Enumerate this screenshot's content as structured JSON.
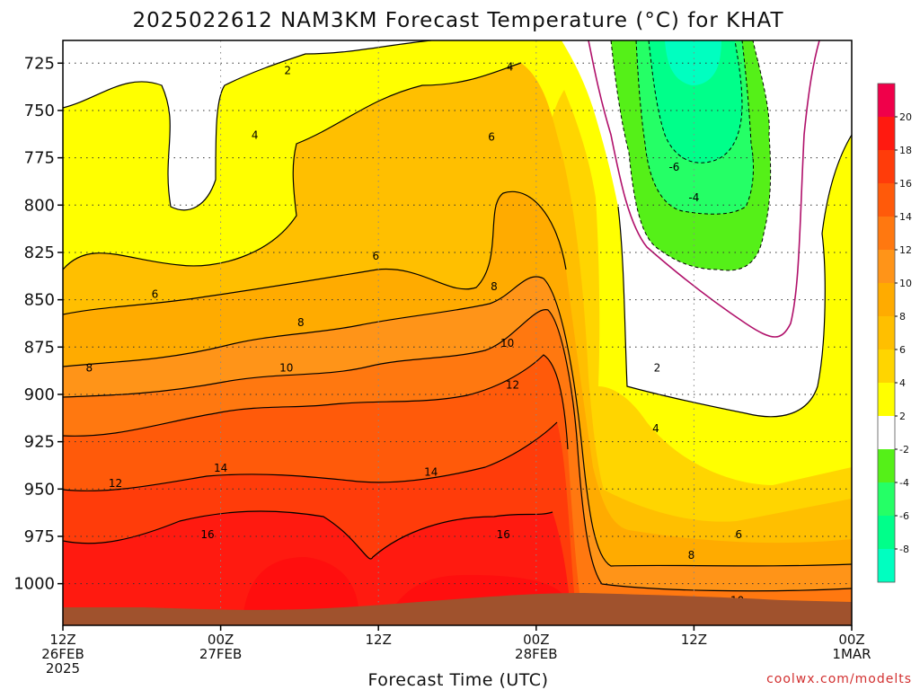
{
  "chart_data": {
    "type": "heatmap",
    "title": "2025022612 NAM3KM Forecast Temperature (°C) for KHAT",
    "xlabel": "Forecast Time (UTC)",
    "ylabel": "",
    "credit": "coolwx.com/modelts",
    "x_ticks": [
      {
        "hour": 0,
        "line1": "12Z",
        "line2": "26FEB",
        "line3": "2025"
      },
      {
        "hour": 12,
        "line1": "00Z",
        "line2": "27FEB",
        "line3": ""
      },
      {
        "hour": 24,
        "line1": "12Z",
        "line2": "",
        "line3": ""
      },
      {
        "hour": 36,
        "line1": "00Z",
        "line2": "28FEB",
        "line3": ""
      },
      {
        "hour": 48,
        "line1": "12Z",
        "line2": "",
        "line3": ""
      },
      {
        "hour": 60,
        "line1": "00Z",
        "line2": "1MAR",
        "line3": ""
      }
    ],
    "xlim_hours": [
      0,
      60
    ],
    "y_ticks": [
      "725",
      "750",
      "775",
      "800",
      "825",
      "850",
      "875",
      "900",
      "925",
      "950",
      "975",
      "1000"
    ],
    "ylim_hpa": [
      713,
      1022
    ],
    "grid": true,
    "surface_pressure_hpa": 1010,
    "colorbar": {
      "labels": [
        "20",
        "18",
        "16",
        "14",
        "12",
        "10",
        "8",
        "6",
        "4",
        "2",
        "-2",
        "-4",
        "-6",
        "-8"
      ],
      "colors": [
        "#f0004a",
        "#ff1a10",
        "#ff3c0a",
        "#ff5a0a",
        "#ff7810",
        "#ff9418",
        "#ffab00",
        "#ffbf00",
        "#ffd500",
        "#ffff00",
        "#ffffff",
        "#55f018",
        "#25ff66",
        "#00ff8a",
        "#00ffc0"
      ]
    },
    "contour_labels": [
      {
        "text": "2",
        "hour": 17.1,
        "p": 729
      },
      {
        "text": "4",
        "hour": 34,
        "p": 727
      },
      {
        "text": "4",
        "hour": 14.6,
        "p": 763
      },
      {
        "text": "6",
        "hour": 32.6,
        "p": 764
      },
      {
        "text": "-6",
        "hour": 46.5,
        "p": 780
      },
      {
        "text": "-4",
        "hour": 48,
        "p": 796
      },
      {
        "text": "6",
        "hour": 23.8,
        "p": 827
      },
      {
        "text": "8",
        "hour": 32.8,
        "p": 843
      },
      {
        "text": "6",
        "hour": 7,
        "p": 847
      },
      {
        "text": "8",
        "hour": 18.1,
        "p": 862
      },
      {
        "text": "10",
        "hour": 33.8,
        "p": 873
      },
      {
        "text": "10",
        "hour": 17,
        "p": 886
      },
      {
        "text": "8",
        "hour": 2,
        "p": 886
      },
      {
        "text": "2",
        "hour": 45.2,
        "p": 886
      },
      {
        "text": "12",
        "hour": 34.2,
        "p": 895
      },
      {
        "text": "4",
        "hour": 45.1,
        "p": 918
      },
      {
        "text": "14",
        "hour": 12,
        "p": 939
      },
      {
        "text": "14",
        "hour": 28,
        "p": 941
      },
      {
        "text": "12",
        "hour": 4,
        "p": 947
      },
      {
        "text": "6",
        "hour": 51.4,
        "p": 974
      },
      {
        "text": "16",
        "hour": 11,
        "p": 974
      },
      {
        "text": "16",
        "hour": 33.5,
        "p": 974
      },
      {
        "text": "8",
        "hour": 47.8,
        "p": 985
      },
      {
        "text": "10",
        "hour": 51.3,
        "p": 1009
      }
    ]
  }
}
